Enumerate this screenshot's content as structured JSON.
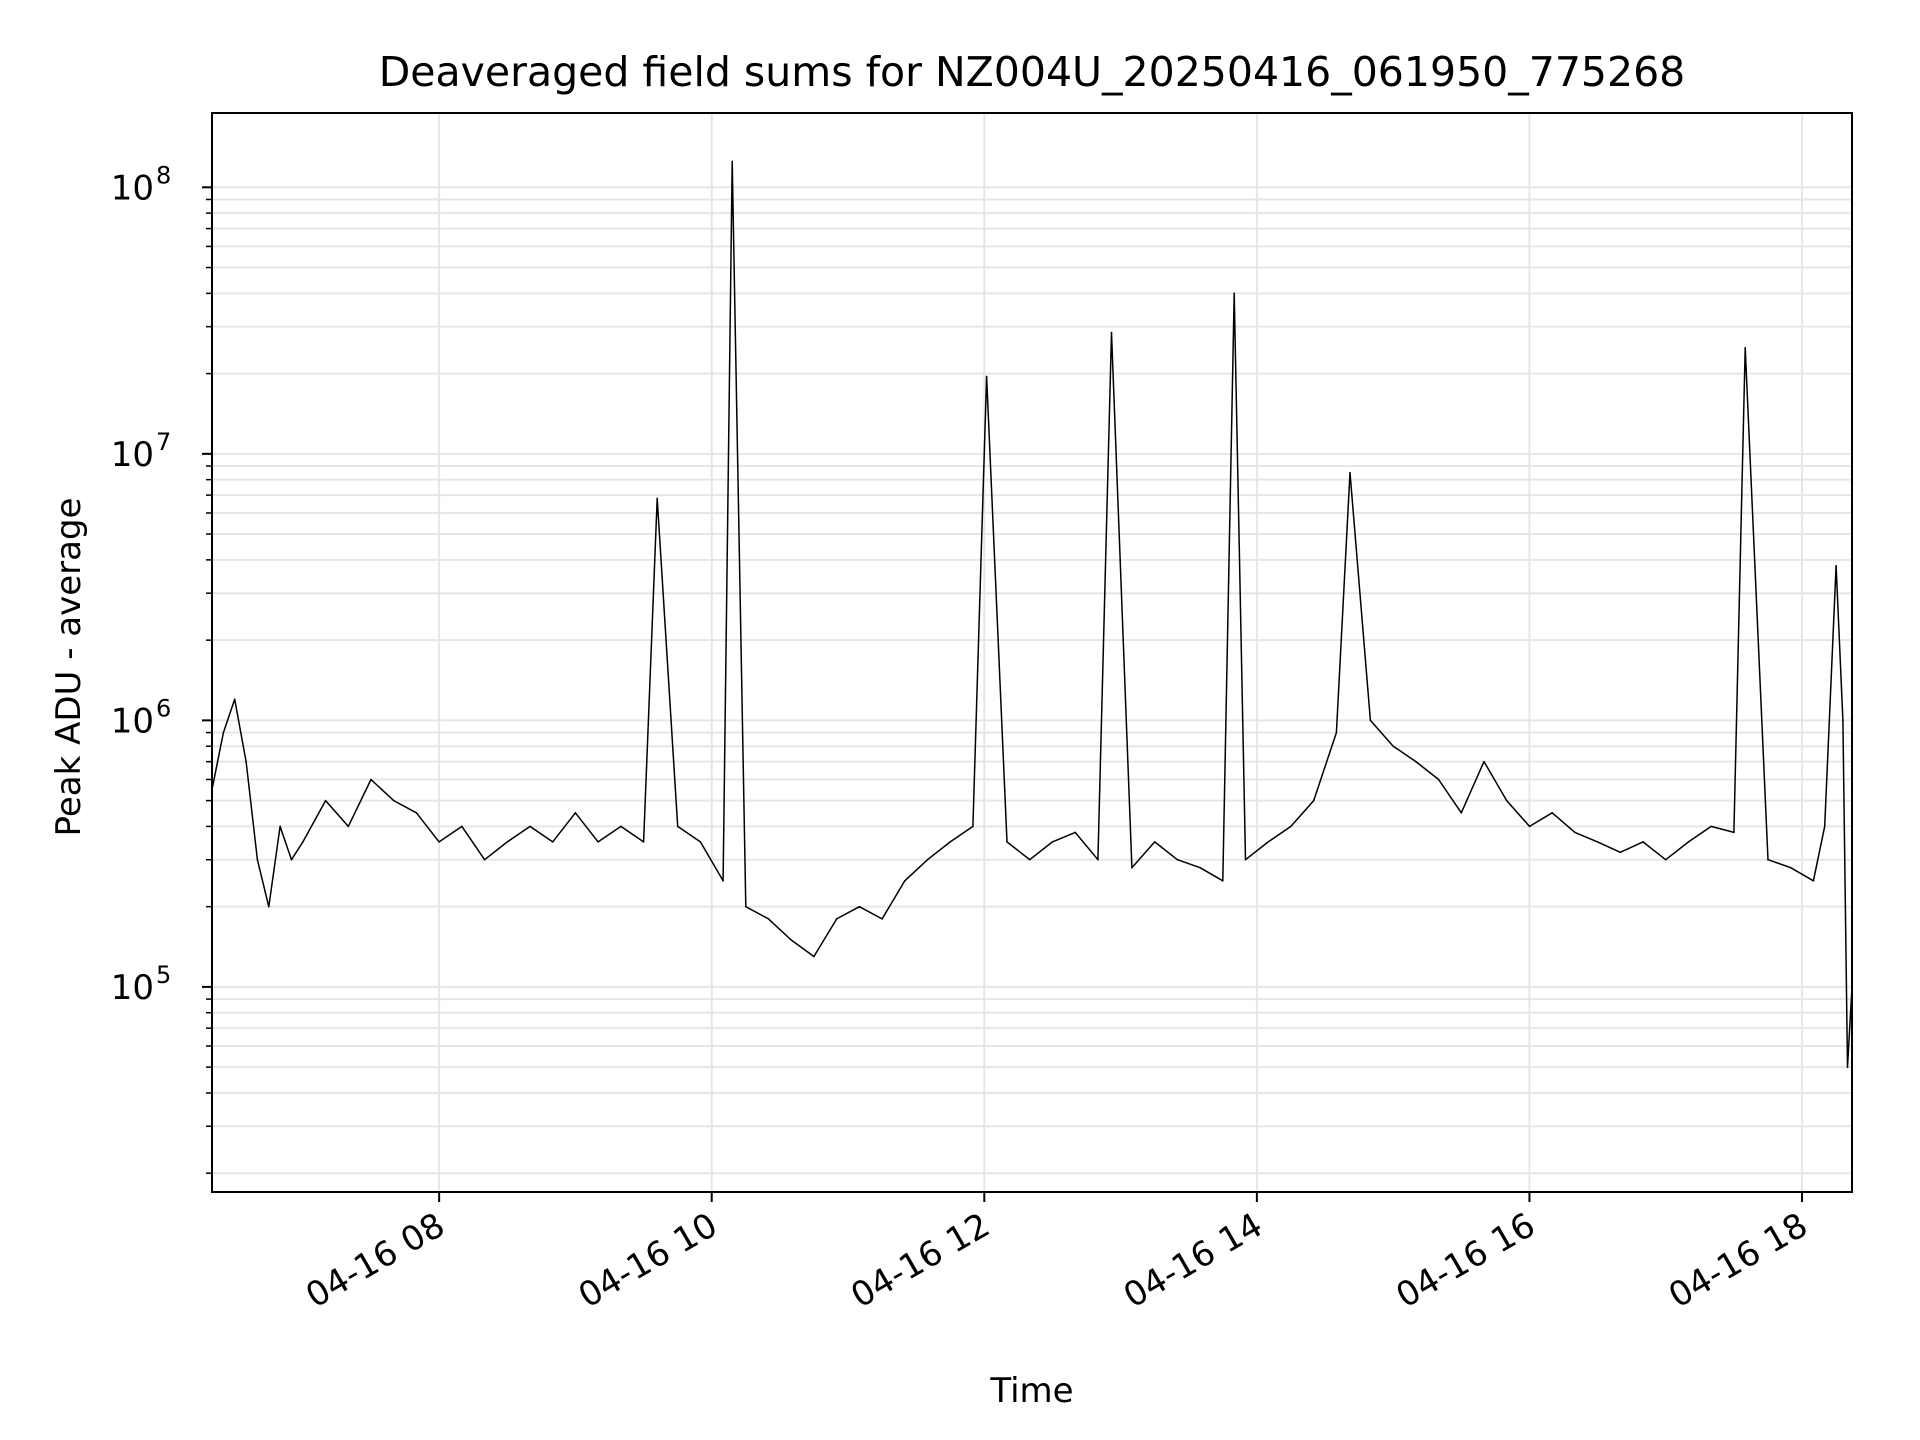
{
  "chart_data": {
    "type": "line",
    "title": "Deaveraged field sums for NZ004U_20250416_061950_775268",
    "xlabel": "Time",
    "ylabel": "Peak ADU - average",
    "y_scale": "log",
    "x_axis_type": "datetime",
    "xlim": [
      "2025-04-16 06:20",
      "2025-04-16 18:22"
    ],
    "ylim": [
      17000,
      190000000
    ],
    "grid": true,
    "line_color": "#000000",
    "x_ticks": [
      {
        "value": "2025-04-16 08:00",
        "label": "04-16 08"
      },
      {
        "value": "2025-04-16 10:00",
        "label": "04-16 10"
      },
      {
        "value": "2025-04-16 12:00",
        "label": "04-16 12"
      },
      {
        "value": "2025-04-16 14:00",
        "label": "04-16 14"
      },
      {
        "value": "2025-04-16 16:00",
        "label": "04-16 16"
      },
      {
        "value": "2025-04-16 18:00",
        "label": "04-16 18"
      }
    ],
    "y_ticks": [
      {
        "value": 100000,
        "base": "10",
        "exp": "5"
      },
      {
        "value": 1000000,
        "base": "10",
        "exp": "6"
      },
      {
        "value": 10000000,
        "base": "10",
        "exp": "7"
      },
      {
        "value": 100000000,
        "base": "10",
        "exp": "8"
      }
    ],
    "series": [
      {
        "x": [
          "2025-04-16 06:20",
          "2025-04-16 06:25",
          "2025-04-16 06:30",
          "2025-04-16 06:35",
          "2025-04-16 06:40",
          "2025-04-16 06:45",
          "2025-04-16 06:50",
          "2025-04-16 06:55",
          "2025-04-16 07:00",
          "2025-04-16 07:10",
          "2025-04-16 07:20",
          "2025-04-16 07:30",
          "2025-04-16 07:40",
          "2025-04-16 07:50",
          "2025-04-16 08:00",
          "2025-04-16 08:10",
          "2025-04-16 08:20",
          "2025-04-16 08:30",
          "2025-04-16 08:40",
          "2025-04-16 08:50",
          "2025-04-16 09:00",
          "2025-04-16 09:10",
          "2025-04-16 09:20",
          "2025-04-16 09:30",
          "2025-04-16 09:36",
          "2025-04-16 09:45",
          "2025-04-16 09:55",
          "2025-04-16 10:05",
          "2025-04-16 10:09",
          "2025-04-16 10:15",
          "2025-04-16 10:25",
          "2025-04-16 10:35",
          "2025-04-16 10:45",
          "2025-04-16 10:55",
          "2025-04-16 11:05",
          "2025-04-16 11:15",
          "2025-04-16 11:25",
          "2025-04-16 11:35",
          "2025-04-16 11:45",
          "2025-04-16 11:55",
          "2025-04-16 12:01",
          "2025-04-16 12:10",
          "2025-04-16 12:20",
          "2025-04-16 12:30",
          "2025-04-16 12:40",
          "2025-04-16 12:50",
          "2025-04-16 12:56",
          "2025-04-16 13:05",
          "2025-04-16 13:15",
          "2025-04-16 13:25",
          "2025-04-16 13:35",
          "2025-04-16 13:45",
          "2025-04-16 13:50",
          "2025-04-16 13:55",
          "2025-04-16 14:05",
          "2025-04-16 14:15",
          "2025-04-16 14:25",
          "2025-04-16 14:35",
          "2025-04-16 14:41",
          "2025-04-16 14:50",
          "2025-04-16 15:00",
          "2025-04-16 15:10",
          "2025-04-16 15:20",
          "2025-04-16 15:30",
          "2025-04-16 15:40",
          "2025-04-16 15:50",
          "2025-04-16 16:00",
          "2025-04-16 16:10",
          "2025-04-16 16:20",
          "2025-04-16 16:30",
          "2025-04-16 16:40",
          "2025-04-16 16:50",
          "2025-04-16 17:00",
          "2025-04-16 17:10",
          "2025-04-16 17:20",
          "2025-04-16 17:30",
          "2025-04-16 17:35",
          "2025-04-16 17:45",
          "2025-04-16 17:55",
          "2025-04-16 18:05",
          "2025-04-16 18:10",
          "2025-04-16 18:15",
          "2025-04-16 18:18",
          "2025-04-16 18:20",
          "2025-04-16 18:22"
        ],
        "y": [
          550000,
          900000,
          1200000,
          700000,
          300000,
          200000,
          400000,
          300000,
          350000,
          500000,
          400000,
          600000,
          500000,
          450000,
          350000,
          400000,
          300000,
          350000,
          400000,
          350000,
          450000,
          350000,
          400000,
          350000,
          6800000,
          400000,
          350000,
          250000,
          125000000,
          200000,
          180000,
          150000,
          130000,
          180000,
          200000,
          180000,
          250000,
          300000,
          350000,
          400000,
          19500000,
          350000,
          300000,
          350000,
          380000,
          300000,
          28500000,
          280000,
          350000,
          300000,
          280000,
          250000,
          40000000,
          300000,
          350000,
          400000,
          500000,
          900000,
          8500000,
          1000000,
          800000,
          700000,
          600000,
          450000,
          700000,
          500000,
          400000,
          450000,
          380000,
          350000,
          320000,
          350000,
          300000,
          350000,
          400000,
          380000,
          25000000,
          300000,
          280000,
          250000,
          400000,
          3800000,
          1000000,
          50000,
          100000
        ]
      }
    ]
  }
}
